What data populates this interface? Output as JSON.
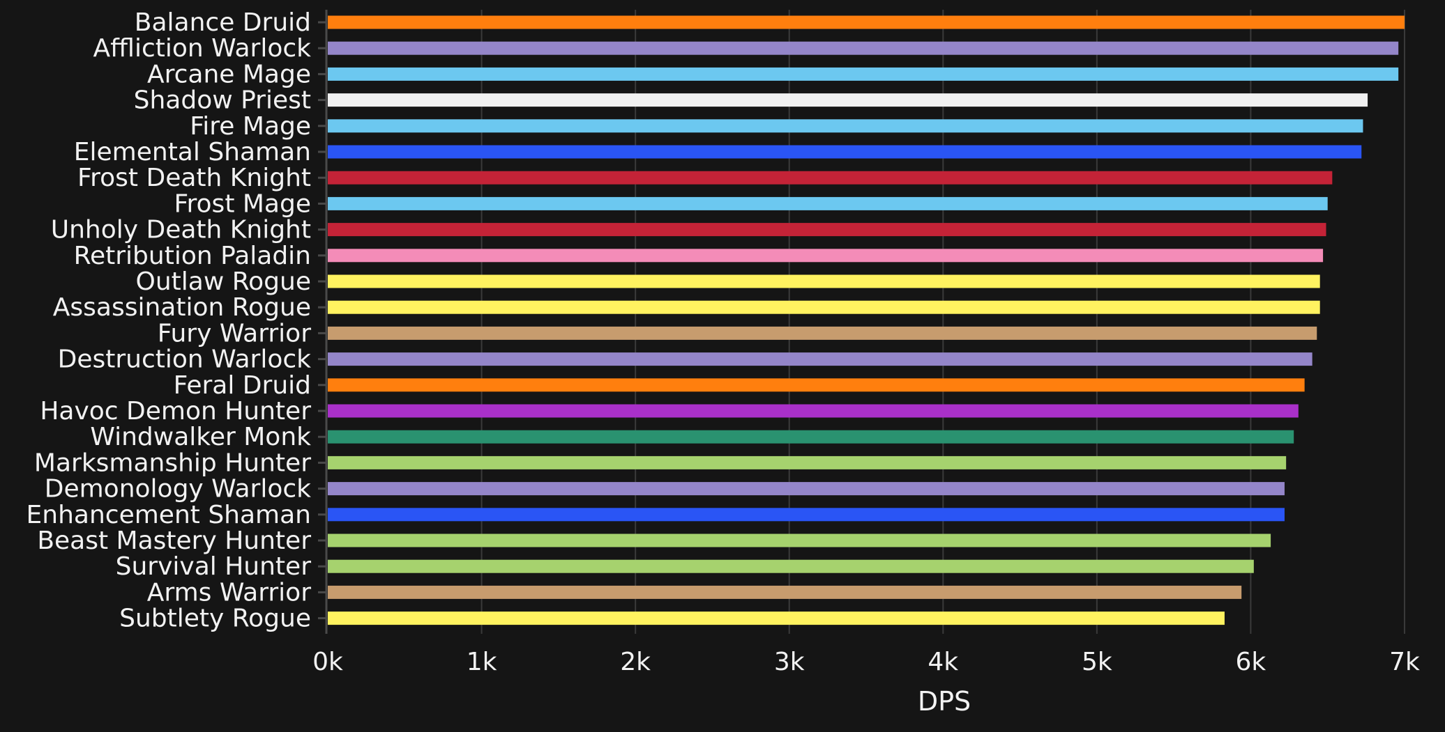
{
  "chart_data": {
    "type": "bar",
    "orientation": "horizontal",
    "xlabel": "DPS",
    "ylabel": "",
    "xlim": [
      0,
      7000
    ],
    "x_ticks": [
      0,
      1000,
      2000,
      3000,
      4000,
      5000,
      6000,
      7000
    ],
    "x_tick_labels": [
      "0k",
      "1k",
      "2k",
      "3k",
      "4k",
      "5k",
      "6k",
      "7k"
    ],
    "grid": "vertical",
    "legend": "none",
    "categories": [
      "Balance Druid",
      "Affliction Warlock",
      "Arcane Mage",
      "Shadow Priest",
      "Fire Mage",
      "Elemental Shaman",
      "Frost Death Knight",
      "Frost Mage",
      "Unholy Death Knight",
      "Retribution Paladin",
      "Outlaw Rogue",
      "Assassination Rogue",
      "Fury Warrior",
      "Destruction Warlock",
      "Feral Druid",
      "Havoc Demon Hunter",
      "Windwalker Monk",
      "Marksmanship Hunter",
      "Demonology Warlock",
      "Enhancement Shaman",
      "Beast Mastery Hunter",
      "Survival Hunter",
      "Arms Warrior",
      "Subtlety Rogue"
    ],
    "values": [
      7000,
      6960,
      6960,
      6760,
      6730,
      6720,
      6530,
      6500,
      6490,
      6470,
      6450,
      6450,
      6430,
      6400,
      6350,
      6310,
      6280,
      6230,
      6220,
      6220,
      6130,
      6020,
      5940,
      5830
    ],
    "colors": [
      "#FF7C0A",
      "#8788EE",
      "#3FC7EB",
      "#FFFFFF",
      "#3FC7EB",
      "#0070DD",
      "#C41E3A",
      "#3FC7EB",
      "#C41E3A",
      "#F48CBA",
      "#FFF468",
      "#FFF468",
      "#C69B6D",
      "#8788EE",
      "#FF7C0A",
      "#A330C9",
      "#00FF98",
      "#AAD372",
      "#8788EE",
      "#0070DD",
      "#AAD372",
      "#AAD372",
      "#C69B6D",
      "#FFF468"
    ],
    "rendered_colors": [
      "#ff7f0e",
      "#9486c9",
      "#6cc8f0",
      "#f0f0f0",
      "#6cc8f0",
      "#2a55f5",
      "#c42337",
      "#6cc8f0",
      "#c42337",
      "#f48cb8",
      "#fff260",
      "#fff260",
      "#c79c6e",
      "#9486c9",
      "#ff7f0e",
      "#a930c9",
      "#2a9270",
      "#a6d26e",
      "#9486c9",
      "#2a55f5",
      "#a6d26e",
      "#a6d26e",
      "#c79c6e",
      "#fff260"
    ]
  },
  "style": {
    "background": "#151515",
    "text_color": "#f2f2f2",
    "grid_color": "#3a3a3a",
    "axis_color": "#4a4a4a"
  }
}
